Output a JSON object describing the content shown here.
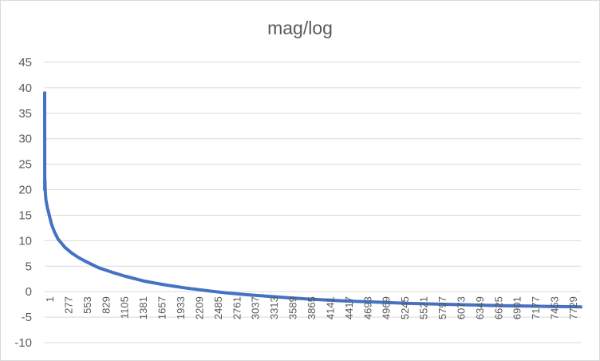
{
  "chart_data": {
    "type": "line",
    "title": "mag/log",
    "xlabel": "",
    "ylabel": "",
    "ylim": [
      -10,
      45
    ],
    "yticks": [
      45,
      40,
      35,
      30,
      25,
      20,
      15,
      10,
      5,
      0,
      -5,
      -10
    ],
    "xlim": [
      1,
      7950
    ],
    "xtick_labels": [
      "1",
      "277",
      "553",
      "829",
      "1105",
      "1381",
      "1657",
      "1933",
      "2209",
      "2485",
      "2761",
      "3037",
      "3313",
      "3589",
      "3865",
      "4141",
      "4417",
      "4693",
      "4969",
      "5245",
      "5521",
      "5797",
      "6073",
      "6349",
      "6625",
      "6901",
      "7177",
      "7453",
      "7729"
    ],
    "grid": true,
    "legend": "none",
    "series": [
      {
        "color": "#4472c4",
        "x": [
          1,
          2,
          5,
          10,
          20,
          40,
          60,
          100,
          150,
          200,
          300,
          400,
          500,
          600,
          800,
          1000,
          1200,
          1500,
          1800,
          2100,
          2400,
          2700,
          3000,
          3300,
          3600,
          3900,
          4200,
          4500,
          4800,
          5100,
          5400,
          5700,
          6000,
          6300,
          6600,
          6900,
          7200,
          7500,
          7800,
          7950
        ],
        "y": [
          39,
          20,
          22,
          19.5,
          18,
          16.5,
          15.5,
          13.3,
          11.6,
          10.3,
          8.7,
          7.6,
          6.7,
          6,
          4.7,
          3.8,
          3.0,
          2.0,
          1.3,
          0.7,
          0.2,
          -0.25,
          -0.6,
          -0.9,
          -1.2,
          -1.45,
          -1.65,
          -1.85,
          -2.0,
          -2.15,
          -2.3,
          -2.4,
          -2.5,
          -2.6,
          -2.7,
          -2.78,
          -2.84,
          -2.9,
          -2.95,
          -3.0
        ]
      }
    ]
  }
}
